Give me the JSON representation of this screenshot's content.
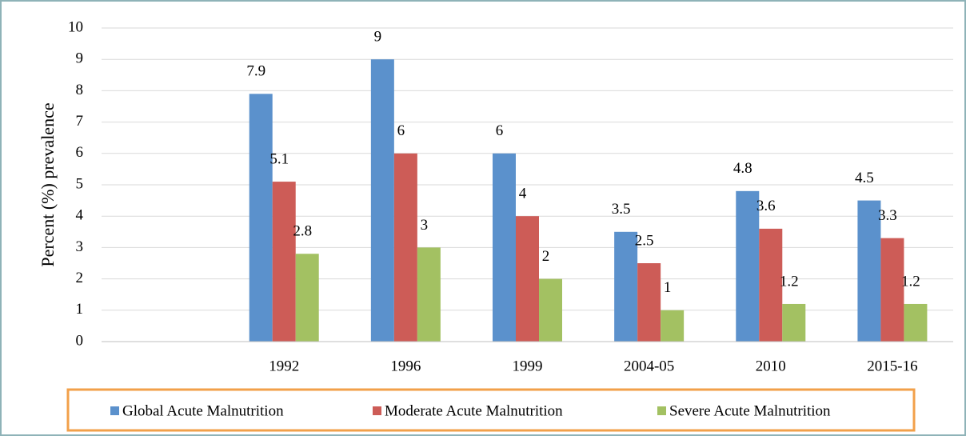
{
  "chart_data": {
    "type": "bar",
    "y_label": "Percent (%) prevalence",
    "categories": [
      null,
      "1992",
      "1996",
      "1999",
      "2004-05",
      "2010",
      "2015-16"
    ],
    "series": [
      {
        "name": "Global Acute Malnutrition",
        "color": "#5b91cc",
        "values": [
          null,
          7.9,
          9,
          6,
          3.5,
          4.8,
          4.5
        ]
      },
      {
        "name": "Moderate Acute Malnutrition",
        "color": "#cd5c57",
        "values": [
          null,
          5.1,
          6,
          4,
          2.5,
          3.6,
          3.3
        ]
      },
      {
        "name": "Severe Acute Malnutrition",
        "color": "#a3c162",
        "values": [
          null,
          2.8,
          3,
          2,
          1,
          1.2,
          1.2
        ]
      }
    ],
    "ylim": [
      0,
      10
    ],
    "yticks": [
      0,
      1,
      2,
      3,
      4,
      5,
      6,
      7,
      8,
      9,
      10
    ],
    "grid": true,
    "legend": "bottom"
  }
}
